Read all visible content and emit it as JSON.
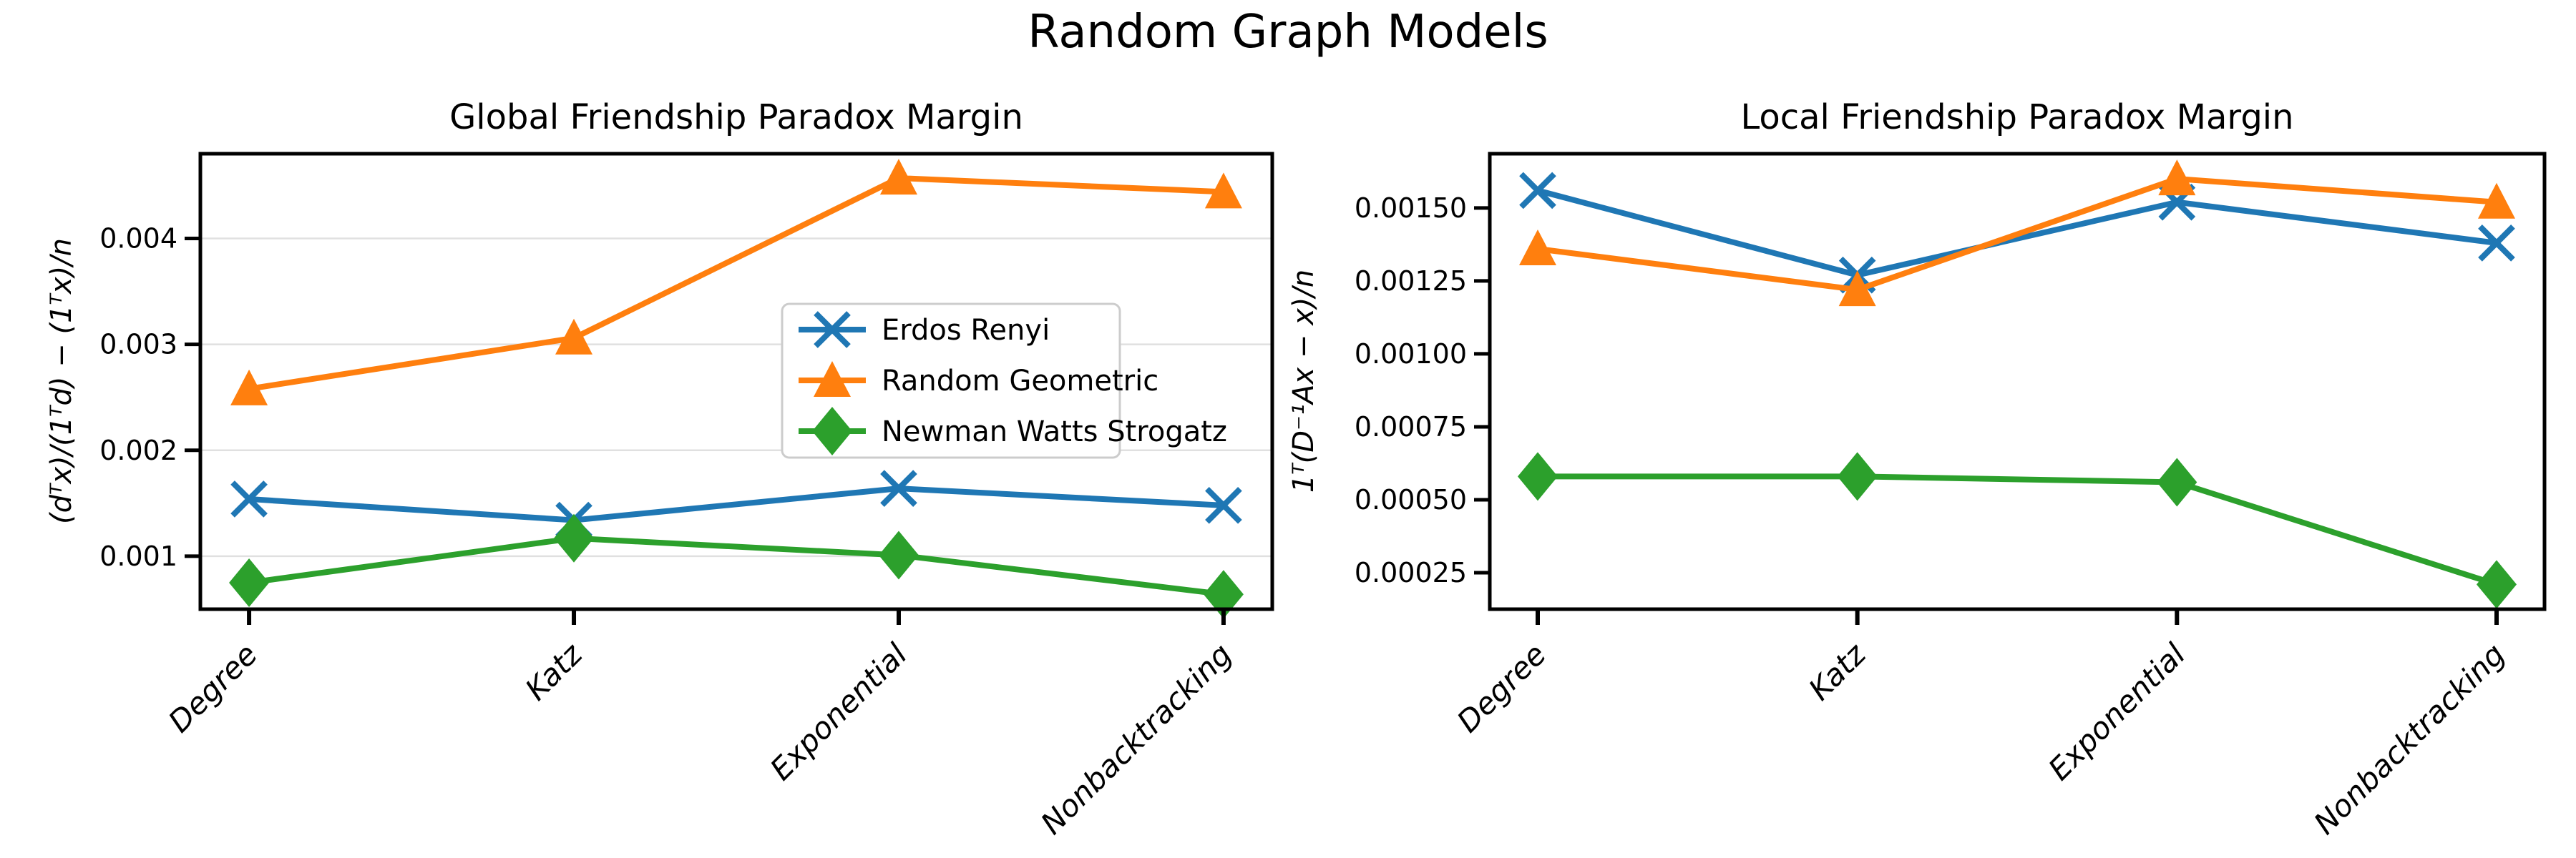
{
  "figure": {
    "title": "Random Graph Models",
    "background": "#ffffff"
  },
  "style": {
    "grid_color": "#e0e0e0",
    "axis_color": "#000000",
    "legend_border_color": "#cccccc",
    "legend_background": "#ffffff",
    "text_color": "#000000"
  },
  "chart_data": [
    {
      "type": "line",
      "title": "Global Friendship Paradox Margin",
      "ylabel": "(dᵀx)/(1ᵀd) − (1ᵀx)/n",
      "xlabel": "",
      "categories": [
        "Degree",
        "Katz",
        "Exponential",
        "Nonbacktracking"
      ],
      "series": [
        {
          "name": "Erdos Renyi",
          "color": "#1f77b4",
          "marker": "x",
          "values": [
            0.00154,
            0.00134,
            0.00164,
            0.00148
          ]
        },
        {
          "name": "Random Geometric",
          "color": "#ff7f0e",
          "marker": "triangle-up",
          "values": [
            0.00258,
            0.00306,
            0.00457,
            0.00444
          ]
        },
        {
          "name": "Newman Watts Strogatz",
          "color": "#2ca02c",
          "marker": "diamond",
          "values": [
            0.00075,
            0.00117,
            0.00101,
            0.00064
          ]
        }
      ],
      "yticks": [
        0.001,
        0.002,
        0.003,
        0.004
      ],
      "ytick_labels": [
        "0.001",
        "0.002",
        "0.003",
        "0.004"
      ],
      "ylim": [
        0.0005,
        0.0048
      ],
      "grid": true,
      "legend": {
        "visible": true,
        "location": "center right"
      }
    },
    {
      "type": "line",
      "title": "Local Friendship Paradox Margin",
      "ylabel": "1ᵀ(D⁻¹Ax − x)/n",
      "xlabel": "",
      "categories": [
        "Degree",
        "Katz",
        "Exponential",
        "Nonbacktracking"
      ],
      "series": [
        {
          "name": "Erdos Renyi",
          "color": "#1f77b4",
          "marker": "x",
          "values": [
            0.00156,
            0.00127,
            0.00152,
            0.00138
          ]
        },
        {
          "name": "Random Geometric",
          "color": "#ff7f0e",
          "marker": "triangle-up",
          "values": [
            0.00136,
            0.00122,
            0.0016,
            0.00152
          ]
        },
        {
          "name": "Newman Watts Strogatz",
          "color": "#2ca02c",
          "marker": "diamond",
          "values": [
            0.00058,
            0.00058,
            0.00056,
            0.00021
          ]
        }
      ],
      "yticks": [
        0.00025,
        0.0005,
        0.00075,
        0.001,
        0.00125,
        0.0015
      ],
      "ytick_labels": [
        "0.00025",
        "0.00050",
        "0.00075",
        "0.00100",
        "0.00125",
        "0.00150"
      ],
      "ylim": [
        0.000125,
        0.001686
      ],
      "grid": false,
      "legend": {
        "visible": false
      }
    }
  ]
}
